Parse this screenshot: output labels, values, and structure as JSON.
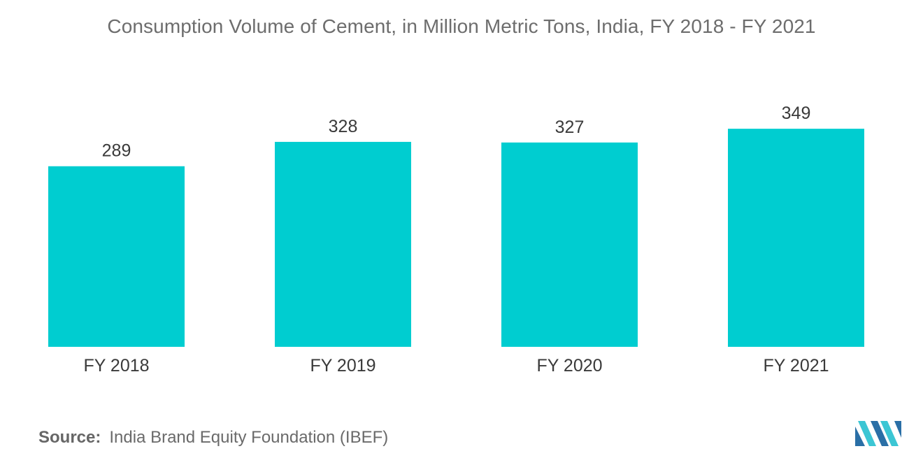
{
  "title": "Consumption Volume of Cement, in Million Metric Tons, India, FY 2018 - FY 2021",
  "source": {
    "label": "Source:",
    "text": "India Brand Equity Foundation (IBEF)"
  },
  "logo_icon": "mordor-intelligence-logo",
  "colors": {
    "bar": "#00cdd0",
    "logo_dark": "#2a6fa6",
    "logo_light": "#3cc6d4"
  },
  "chart_data": {
    "type": "bar",
    "title": "Consumption Volume of Cement, in Million Metric Tons, India, FY 2018 - FY 2021",
    "xlabel": "",
    "ylabel": "",
    "categories": [
      "FY 2018",
      "FY 2019",
      "FY 2020",
      "FY 2021"
    ],
    "values": [
      289,
      328,
      327,
      349
    ],
    "data_labels": [
      "289",
      "328",
      "327",
      "349"
    ],
    "grid": false,
    "legend": "none"
  }
}
